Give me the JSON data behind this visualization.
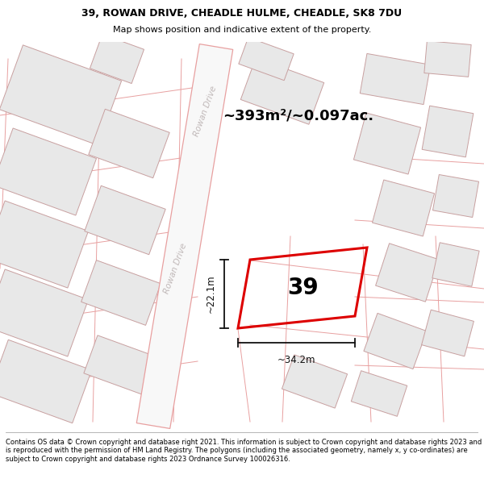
{
  "title_line1": "39, ROWAN DRIVE, CHEADLE HULME, CHEADLE, SK8 7DU",
  "title_line2": "Map shows position and indicative extent of the property.",
  "footer_text": "Contains OS data © Crown copyright and database right 2021. This information is subject to Crown copyright and database rights 2023 and is reproduced with the permission of HM Land Registry. The polygons (including the associated geometry, namely x, y co-ordinates) are subject to Crown copyright and database rights 2023 Ordnance Survey 100026316.",
  "area_label": "~393m²/~0.097ac.",
  "street_label_top": "Rowan Drive",
  "street_label_mid": "Rowan Drive",
  "dim_width": "~34.2m",
  "dim_height": "~22.1m",
  "property_number": "39",
  "bg_color": "#ffffff",
  "map_bg": "#ffffff",
  "road_color": "#f5f5f5",
  "building_color": "#e8e8e8",
  "building_border": "#c8a0a0",
  "road_border_color": "#e8a0a0",
  "highlight_color": "#dd0000",
  "text_color": "#000000",
  "dim_color": "#111111",
  "street_text_color": "#c0b8b8"
}
